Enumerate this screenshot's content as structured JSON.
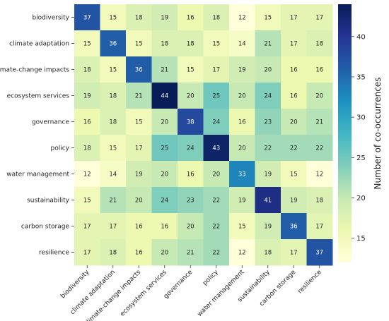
{
  "chart_data": {
    "type": "heatmap",
    "title": "",
    "xlabel": "",
    "ylabel": "",
    "colormap": "YlGnBu",
    "categories": [
      "biodiversity",
      "climate adaptation",
      "climate-change impacts",
      "ecosystem services",
      "governance",
      "policy",
      "water management",
      "sustainability",
      "carbon storage",
      "resilience"
    ],
    "values": [
      [
        37,
        15,
        18,
        19,
        16,
        18,
        12,
        15,
        17,
        17
      ],
      [
        15,
        36,
        15,
        18,
        18,
        15,
        14,
        21,
        17,
        18
      ],
      [
        18,
        15,
        36,
        21,
        15,
        17,
        19,
        20,
        16,
        16
      ],
      [
        19,
        18,
        21,
        44,
        20,
        25,
        20,
        24,
        16,
        20
      ],
      [
        16,
        18,
        15,
        20,
        38,
        24,
        16,
        23,
        20,
        21
      ],
      [
        18,
        15,
        17,
        25,
        24,
        43,
        20,
        22,
        22,
        22
      ],
      [
        12,
        14,
        19,
        20,
        16,
        20,
        33,
        19,
        15,
        12
      ],
      [
        15,
        21,
        20,
        24,
        23,
        22,
        19,
        41,
        19,
        18
      ],
      [
        17,
        17,
        16,
        16,
        20,
        22,
        15,
        19,
        36,
        17
      ],
      [
        17,
        18,
        16,
        20,
        21,
        22,
        12,
        18,
        17,
        37
      ]
    ],
    "value_range": [
      12,
      44
    ],
    "colorbar": {
      "label": "Number of co-occurrences",
      "ticks": [
        15,
        20,
        25,
        30,
        35,
        40
      ]
    }
  }
}
